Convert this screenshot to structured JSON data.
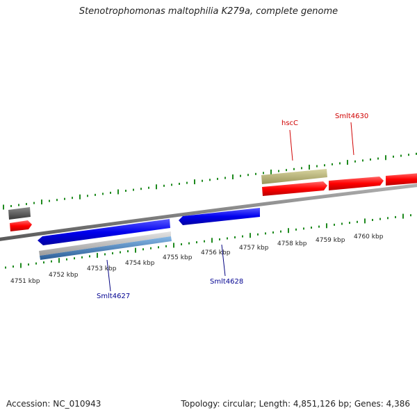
{
  "title": "Stenotrophomonas maltophilia K279a, complete genome",
  "accession": "Accession: NC_010943",
  "summary": "Topology: circular; Length: 4,851,126 bp; Genes: 4,386",
  "kbp_labels": [
    "4751 kbp",
    "4752 kbp",
    "4753 kbp",
    "4754 kbp",
    "4755 kbp",
    "4756 kbp",
    "4757 kbp",
    "4758 kbp",
    "4759 kbp",
    "4760 kbp"
  ],
  "gene_labels": {
    "hscC": "hscC",
    "smlt4630": "Smlt4630",
    "smlt4627": "Smlt4627",
    "smlt4628": "Smlt4628"
  },
  "colors": {
    "backbone": "#808080",
    "tick": "#1e8a1e",
    "forward_cds": "#ff0000",
    "reverse_cds": "#0000ff",
    "trna": "#b8b478",
    "grey_feature": "#5a5a5a",
    "light_grey_feature": "#b8b8b8",
    "steel_feature": "#4a86c0"
  }
}
